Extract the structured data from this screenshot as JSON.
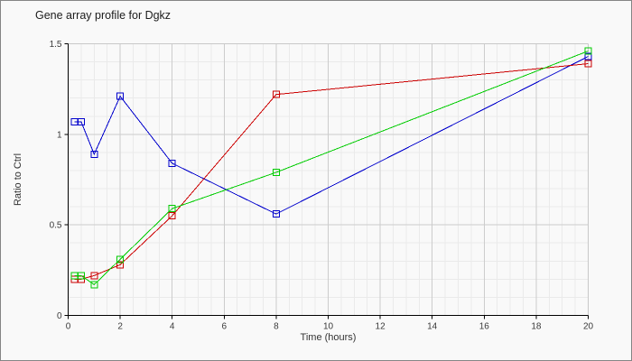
{
  "chart_data": {
    "type": "line",
    "title": "Gene array profile for Dgkz",
    "xlabel": "Time (hours)",
    "ylabel": "Ratio to Ctrl",
    "x": [
      0.25,
      0.5,
      1,
      2,
      4,
      8,
      20
    ],
    "series": [
      {
        "name": "series-blue",
        "color": "#0000cc",
        "values": [
          1.07,
          1.07,
          0.89,
          1.21,
          0.84,
          0.56,
          1.43
        ]
      },
      {
        "name": "series-red",
        "color": "#cc0000",
        "values": [
          0.2,
          0.2,
          0.22,
          0.28,
          0.55,
          1.22,
          1.39
        ]
      },
      {
        "name": "series-green",
        "color": "#00cc00",
        "values": [
          0.22,
          0.22,
          0.17,
          0.31,
          0.59,
          0.79,
          1.46
        ]
      }
    ],
    "xlim": [
      0,
      20
    ],
    "ylim": [
      0,
      1.5
    ],
    "x_major_ticks": [
      0,
      2,
      4,
      6,
      8,
      10,
      12,
      14,
      16,
      18,
      20
    ],
    "x_tick_labels": [
      "0",
      "2",
      "4",
      "6",
      "8",
      "10",
      "12",
      "14",
      "16",
      "18",
      "20"
    ],
    "y_major_ticks": [
      0,
      0.5,
      1,
      1.5
    ],
    "y_tick_labels": [
      "0",
      "0.5",
      "1",
      "1.5"
    ],
    "x_minor_step": 0.5,
    "y_minor_step": 0.1,
    "marker": "open-square",
    "legend": "none",
    "grid": true
  },
  "colors": {
    "background": "#f9f9f9",
    "frame_border": "#858585",
    "grid_minor": "#eaeaea",
    "grid_major": "#cccccc",
    "plot_border": "#c8c8c8",
    "axis": "#000000",
    "tick_text": "#3a3a3a",
    "title_text": "#1c1c1c"
  }
}
